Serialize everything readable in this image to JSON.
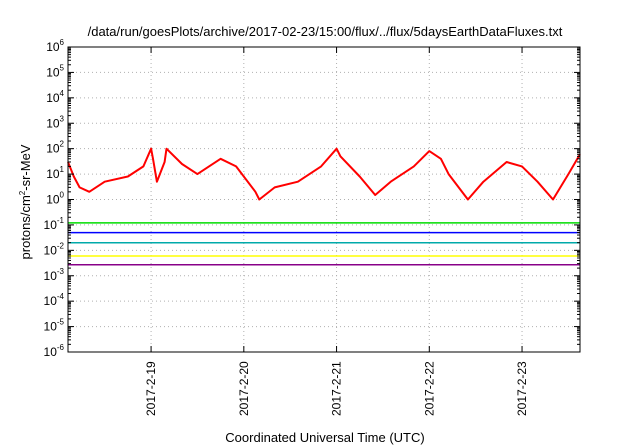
{
  "chart_data": {
    "type": "line",
    "title": "/data/run/goesPlots/archive/2017-02-23/15:00/flux/../flux/5daysEarthDataFluxes.txt",
    "xlabel": "Coordinated Universal Time (UTC)",
    "ylabel": "protons/cm2-sr-MeV",
    "ylabel_parts": {
      "before": "protons/cm",
      "sup": "2",
      "after": "-sr-MeV"
    },
    "y_scale": "log",
    "ylim": [
      1e-06,
      1000000.0
    ],
    "xlim": [
      "2017-02-18 02:30",
      "2017-02-23 15:00"
    ],
    "grid": true,
    "y_ticks": [
      {
        "value": 1000000.0,
        "base": "10",
        "exp": "6"
      },
      {
        "value": 100000.0,
        "base": "10",
        "exp": "5"
      },
      {
        "value": 10000.0,
        "base": "10",
        "exp": "4"
      },
      {
        "value": 1000.0,
        "base": "10",
        "exp": "3"
      },
      {
        "value": 100.0,
        "base": "10",
        "exp": "2"
      },
      {
        "value": 10.0,
        "base": "10",
        "exp": "1"
      },
      {
        "value": 1.0,
        "base": "10",
        "exp": "0"
      },
      {
        "value": 0.1,
        "base": "10",
        "exp": "-1"
      },
      {
        "value": 0.01,
        "base": "10",
        "exp": "-2"
      },
      {
        "value": 0.001,
        "base": "10",
        "exp": "-3"
      },
      {
        "value": 0.0001,
        "base": "10",
        "exp": "-4"
      },
      {
        "value": 1e-05,
        "base": "10",
        "exp": "-5"
      },
      {
        "value": 1e-06,
        "base": "10",
        "exp": "-6"
      }
    ],
    "x_ticks": [
      {
        "value": "2017-02-19 00:00",
        "label": "2017-2-19"
      },
      {
        "value": "2017-02-20 00:00",
        "label": "2017-2-20"
      },
      {
        "value": "2017-02-21 00:00",
        "label": "2017-2-21"
      },
      {
        "value": "2017-02-22 00:00",
        "label": "2017-2-22"
      },
      {
        "value": "2017-02-23 00:00",
        "label": "2017-2-23"
      }
    ],
    "series_x": [
      "2017-02-18 02:30",
      "2017-02-18 04:00",
      "2017-02-18 05:30",
      "2017-02-18 08:00",
      "2017-02-18 12:00",
      "2017-02-18 18:00",
      "2017-02-18 22:00",
      "2017-02-19 00:00",
      "2017-02-19 00:30",
      "2017-02-19 01:30",
      "2017-02-19 03:30",
      "2017-02-19 04:00",
      "2017-02-19 08:00",
      "2017-02-19 12:00",
      "2017-02-19 18:00",
      "2017-02-19 22:00",
      "2017-02-20 03:00",
      "2017-02-20 04:00",
      "2017-02-20 08:00",
      "2017-02-20 14:00",
      "2017-02-20 20:00",
      "2017-02-21 00:00",
      "2017-02-21 01:00",
      "2017-02-21 06:00",
      "2017-02-21 10:00",
      "2017-02-21 14:00",
      "2017-02-21 20:00",
      "2017-02-22 00:00",
      "2017-02-22 03:00",
      "2017-02-22 05:00",
      "2017-02-22 10:00",
      "2017-02-22 14:00",
      "2017-02-22 20:00",
      "2017-02-23 00:00",
      "2017-02-23 04:00",
      "2017-02-23 08:00",
      "2017-02-23 12:00",
      "2017-02-23 15:00"
    ],
    "series": [
      {
        "color": "#ff0000",
        "values": [
          30,
          8,
          3,
          2,
          5,
          8,
          20,
          100,
          40,
          5,
          30,
          100,
          25,
          10,
          40,
          20,
          2,
          1,
          3,
          5,
          20,
          100,
          50,
          8,
          1.5,
          5,
          20,
          80,
          40,
          10,
          1,
          5,
          30,
          20,
          5,
          1,
          10,
          60
        ]
      },
      {
        "color": "#00dd00",
        "values": [
          0.12,
          0.12,
          0.12,
          0.12,
          0.12,
          0.12,
          0.12,
          0.12,
          0.12,
          0.12,
          0.12,
          0.12,
          0.12,
          0.12,
          0.12,
          0.12,
          0.12,
          0.12,
          0.12,
          0.12,
          0.12,
          0.12,
          0.12,
          0.12,
          0.12,
          0.12,
          0.12,
          0.12,
          0.12,
          0.12,
          0.12,
          0.12,
          0.12,
          0.12,
          0.12,
          0.12,
          0.12,
          0.12
        ]
      },
      {
        "color": "#0000ff",
        "values": [
          0.05,
          0.05,
          0.05,
          0.05,
          0.05,
          0.05,
          0.05,
          0.05,
          0.05,
          0.05,
          0.05,
          0.05,
          0.05,
          0.05,
          0.05,
          0.05,
          0.05,
          0.05,
          0.05,
          0.05,
          0.05,
          0.05,
          0.05,
          0.05,
          0.05,
          0.05,
          0.05,
          0.05,
          0.05,
          0.05,
          0.05,
          0.05,
          0.05,
          0.05,
          0.05,
          0.05,
          0.05,
          0.05
        ]
      },
      {
        "color": "#00aaaa",
        "values": [
          0.02,
          0.02,
          0.02,
          0.02,
          0.02,
          0.02,
          0.02,
          0.02,
          0.02,
          0.02,
          0.02,
          0.02,
          0.02,
          0.02,
          0.02,
          0.02,
          0.02,
          0.02,
          0.02,
          0.02,
          0.02,
          0.02,
          0.02,
          0.02,
          0.02,
          0.02,
          0.02,
          0.02,
          0.02,
          0.02,
          0.02,
          0.02,
          0.02,
          0.02,
          0.02,
          0.02,
          0.02,
          0.02
        ]
      },
      {
        "color": "#ffff00",
        "values": [
          0.006,
          0.006,
          0.006,
          0.006,
          0.006,
          0.006,
          0.006,
          0.006,
          0.006,
          0.006,
          0.006,
          0.006,
          0.006,
          0.006,
          0.006,
          0.006,
          0.006,
          0.006,
          0.006,
          0.006,
          0.006,
          0.006,
          0.006,
          0.006,
          0.006,
          0.006,
          0.006,
          0.006,
          0.006,
          0.006,
          0.006,
          0.006,
          0.006,
          0.006,
          0.006,
          0.006,
          0.006,
          0.006
        ]
      },
      {
        "color": "#880088",
        "values": [
          0.0027,
          0.0027,
          0.0027,
          0.0027,
          0.0027,
          0.0027,
          0.0027,
          0.0027,
          0.0027,
          0.0027,
          0.0027,
          0.0027,
          0.0027,
          0.0027,
          0.0027,
          0.0027,
          0.0027,
          0.0027,
          0.0027,
          0.0027,
          0.0027,
          0.0027,
          0.0027,
          0.0027,
          0.0027,
          0.0027,
          0.0027,
          0.0027,
          0.0027,
          0.0027,
          0.0027,
          0.0027,
          0.0027,
          0.0027,
          0.0027,
          0.0027,
          0.0027,
          0.0027
        ]
      }
    ]
  }
}
